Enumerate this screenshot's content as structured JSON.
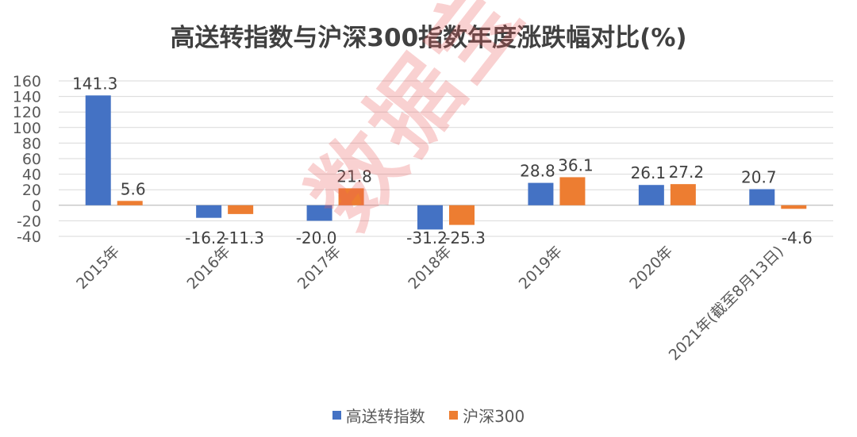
{
  "chart_data": {
    "type": "bar",
    "title": "高送转指数与沪深300指数年度涨跌幅对比(%)",
    "categories": [
      "2015年",
      "2016年",
      "2017年",
      "2018年",
      "2019年",
      "2020年",
      "2021年(截至8月13日)"
    ],
    "series": [
      {
        "name": "高送转指数",
        "color": "#4472C4",
        "values": [
          141.3,
          -16.2,
          -20.0,
          -31.2,
          28.8,
          26.1,
          20.7
        ],
        "labels": [
          "141.3",
          "-16.2",
          "-20.0",
          "-31.2",
          "28.8",
          "26.1",
          "20.7"
        ]
      },
      {
        "name": "沪深300",
        "color": "#ED7D31",
        "values": [
          5.6,
          -11.3,
          21.8,
          -25.3,
          36.1,
          27.2,
          -4.6
        ],
        "labels": [
          "5.6",
          "-11.3",
          "21.8",
          "-25.3",
          "36.1",
          "27.2",
          "-4.6"
        ]
      }
    ],
    "ylim": [
      -40,
      160
    ],
    "yticks": [
      -40,
      -20,
      0,
      20,
      40,
      60,
      80,
      100,
      120,
      140,
      160
    ],
    "grid": true,
    "legend_position": "bottom"
  },
  "watermark": "数据宝",
  "colors": {
    "gridline": "#D9D9D9",
    "axis": "#BFBFBF",
    "watermark": "#E85A5A"
  }
}
